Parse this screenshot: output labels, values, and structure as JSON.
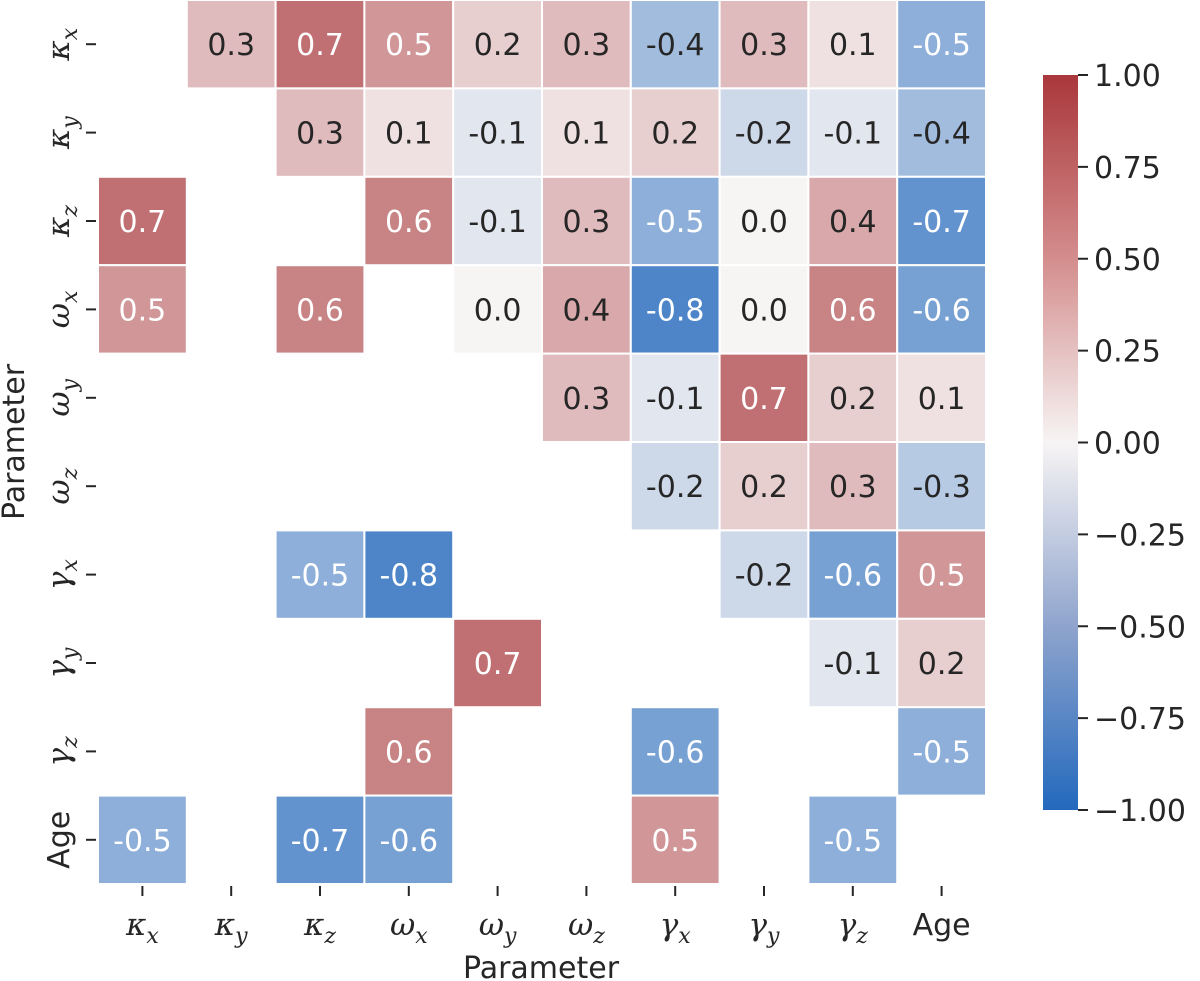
{
  "chart_data": {
    "type": "heatmap",
    "subtype": "sparse correlation matrix",
    "xlabel": "Parameter",
    "ylabel": "Parameter",
    "x_categories": [
      {
        "base": "κ",
        "sub": "x"
      },
      {
        "base": "κ",
        "sub": "y"
      },
      {
        "base": "κ",
        "sub": "z"
      },
      {
        "base": "ω",
        "sub": "x"
      },
      {
        "base": "ω",
        "sub": "y"
      },
      {
        "base": "ω",
        "sub": "z"
      },
      {
        "base": "γ",
        "sub": "x"
      },
      {
        "base": "γ",
        "sub": "y"
      },
      {
        "base": "γ",
        "sub": "z"
      },
      {
        "base": "Age",
        "sub": ""
      }
    ],
    "y_categories": [
      {
        "base": "κ",
        "sub": "x"
      },
      {
        "base": "κ",
        "sub": "y"
      },
      {
        "base": "κ",
        "sub": "z"
      },
      {
        "base": "ω",
        "sub": "x"
      },
      {
        "base": "ω",
        "sub": "y"
      },
      {
        "base": "ω",
        "sub": "z"
      },
      {
        "base": "γ",
        "sub": "x"
      },
      {
        "base": "γ",
        "sub": "y"
      },
      {
        "base": "γ",
        "sub": "z"
      },
      {
        "base": "Age",
        "sub": ""
      }
    ],
    "values": [
      [
        null,
        0.3,
        0.7,
        0.5,
        0.2,
        0.3,
        -0.4,
        0.3,
        0.1,
        -0.5
      ],
      [
        null,
        null,
        0.3,
        0.1,
        -0.1,
        0.1,
        0.2,
        -0.2,
        -0.1,
        -0.4
      ],
      [
        0.7,
        null,
        null,
        0.6,
        -0.1,
        0.3,
        -0.5,
        0.0,
        0.4,
        -0.7
      ],
      [
        0.5,
        null,
        0.6,
        null,
        0.0,
        0.4,
        -0.8,
        0.0,
        0.6,
        -0.6
      ],
      [
        null,
        null,
        null,
        null,
        null,
        0.3,
        -0.1,
        0.7,
        0.2,
        0.1
      ],
      [
        null,
        null,
        null,
        null,
        null,
        null,
        -0.2,
        0.2,
        0.3,
        -0.3
      ],
      [
        null,
        null,
        -0.5,
        -0.8,
        null,
        null,
        null,
        -0.2,
        -0.6,
        0.5
      ],
      [
        null,
        null,
        null,
        null,
        0.7,
        null,
        null,
        null,
        -0.1,
        0.2
      ],
      [
        null,
        null,
        null,
        0.6,
        null,
        null,
        -0.6,
        null,
        null,
        -0.5
      ],
      [
        -0.5,
        null,
        -0.7,
        -0.6,
        null,
        null,
        0.5,
        null,
        -0.5,
        null
      ]
    ],
    "value_labels": [
      [
        "",
        "0.3",
        "0.7",
        "0.5",
        "0.2",
        "0.3",
        "-0.4",
        "0.3",
        "0.1",
        "-0.5"
      ],
      [
        "",
        "",
        "0.3",
        "0.1",
        "-0.1",
        "0.1",
        "0.2",
        "-0.2",
        "-0.1",
        "-0.4"
      ],
      [
        "0.7",
        "",
        "",
        "0.6",
        "-0.1",
        "0.3",
        "-0.5",
        "0.0",
        "0.4",
        "-0.7"
      ],
      [
        "0.5",
        "",
        "0.6",
        "",
        "0.0",
        "0.4",
        "-0.8",
        "0.0",
        "0.6",
        "-0.6"
      ],
      [
        "",
        "",
        "",
        "",
        "",
        "0.3",
        "-0.1",
        "0.7",
        "0.2",
        "0.1"
      ],
      [
        "",
        "",
        "",
        "",
        "",
        "",
        "-0.2",
        "0.2",
        "0.3",
        "-0.3"
      ],
      [
        "",
        "",
        "-0.5",
        "-0.8",
        "",
        "",
        "",
        "-0.2",
        "-0.6",
        "0.5"
      ],
      [
        "",
        "",
        "",
        "",
        "0.7",
        "",
        "",
        "",
        "-0.1",
        "0.2"
      ],
      [
        "",
        "",
        "",
        "0.6",
        "",
        "",
        "-0.6",
        "",
        "",
        "-0.5"
      ],
      [
        "-0.5",
        "",
        "-0.7",
        "-0.6",
        "",
        "",
        "0.5",
        "",
        "-0.5",
        ""
      ]
    ],
    "colorbar": {
      "vmin": -1.0,
      "vmax": 1.0,
      "colormap": "vlag",
      "ticks": [
        1.0,
        0.75,
        0.5,
        0.25,
        0.0,
        -0.25,
        -0.5,
        -0.75,
        -1.0
      ],
      "tick_labels": [
        "1.00",
        "0.75",
        "0.50",
        "0.25",
        "0.00",
        "−0.25",
        "−0.50",
        "−0.75",
        "−1.00"
      ],
      "color_low": "#2369bd",
      "color_mid": "#f7f4f4",
      "color_high": "#a9373b"
    },
    "grid_line_color": "#ffffff",
    "text_color_dark": "#262626",
    "text_color_light": "#ffffff",
    "light_text_threshold": 0.5
  }
}
